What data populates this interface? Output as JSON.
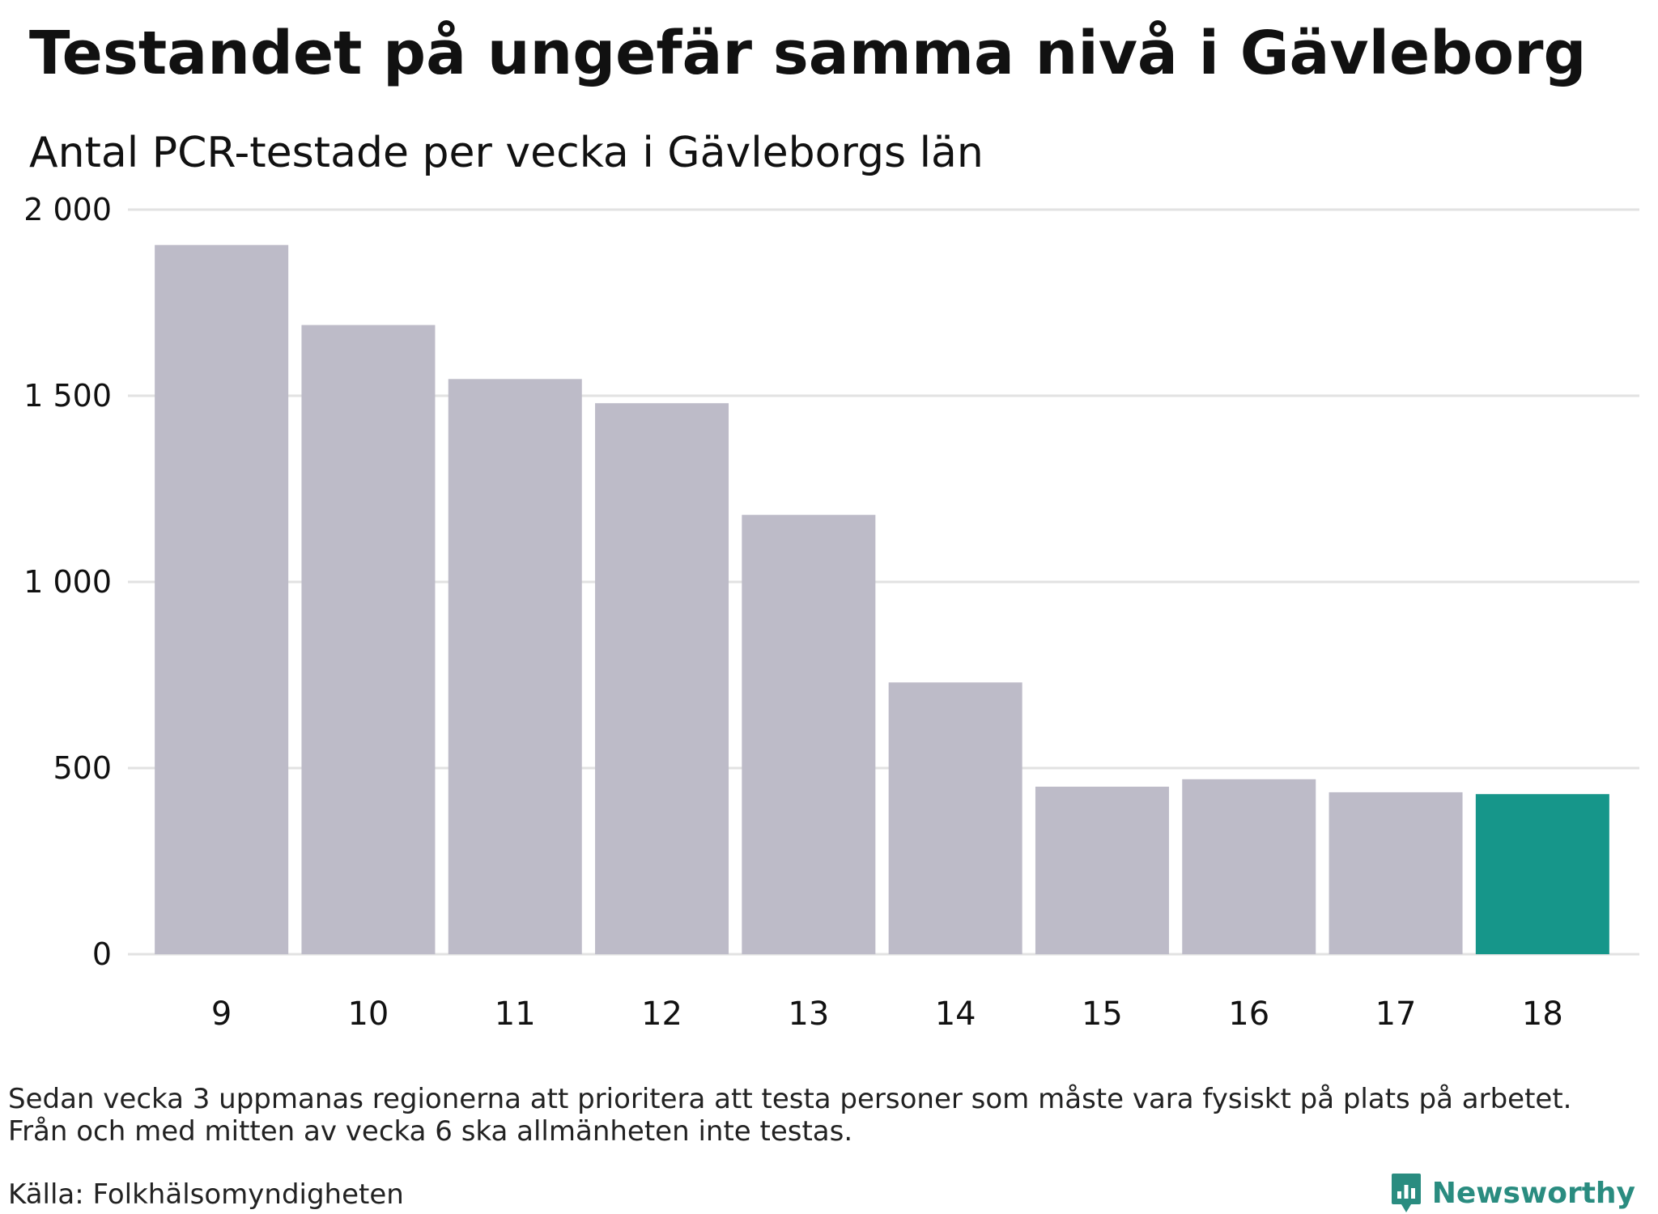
{
  "header": {
    "title": "Testandet på ungefär samma nivå i Gävleborg",
    "subtitle": "Antal PCR-testade per vecka i Gävleborgs län"
  },
  "chart_data": {
    "type": "bar",
    "categories": [
      "9",
      "10",
      "11",
      "12",
      "13",
      "14",
      "15",
      "16",
      "17",
      "18"
    ],
    "values": [
      1905,
      1690,
      1545,
      1480,
      1180,
      730,
      450,
      470,
      435,
      430
    ],
    "highlight_index": 9,
    "ylim": [
      0,
      2000
    ],
    "yticks": [
      0,
      500,
      1000,
      1500,
      2000
    ],
    "ytick_labels": [
      "0",
      "500",
      "1 000",
      "1 500",
      "2 000"
    ],
    "grid": true,
    "colors": {
      "bar": "#bdbbc8",
      "highlight": "#16968a",
      "grid": "#e2e2e2"
    }
  },
  "notes": [
    "Sedan vecka 3 uppmanas regionerna att prioritera att testa personer som måste vara fysiskt på plats på arbetet.",
    "Från och med mitten av vecka 6 ska allmänheten inte testas."
  ],
  "source": "Källa: Folkhälsomyndigheten",
  "brand": {
    "name": "Newsworthy",
    "icon": "newsworthy-logo-icon",
    "color": "#2a8c80"
  }
}
